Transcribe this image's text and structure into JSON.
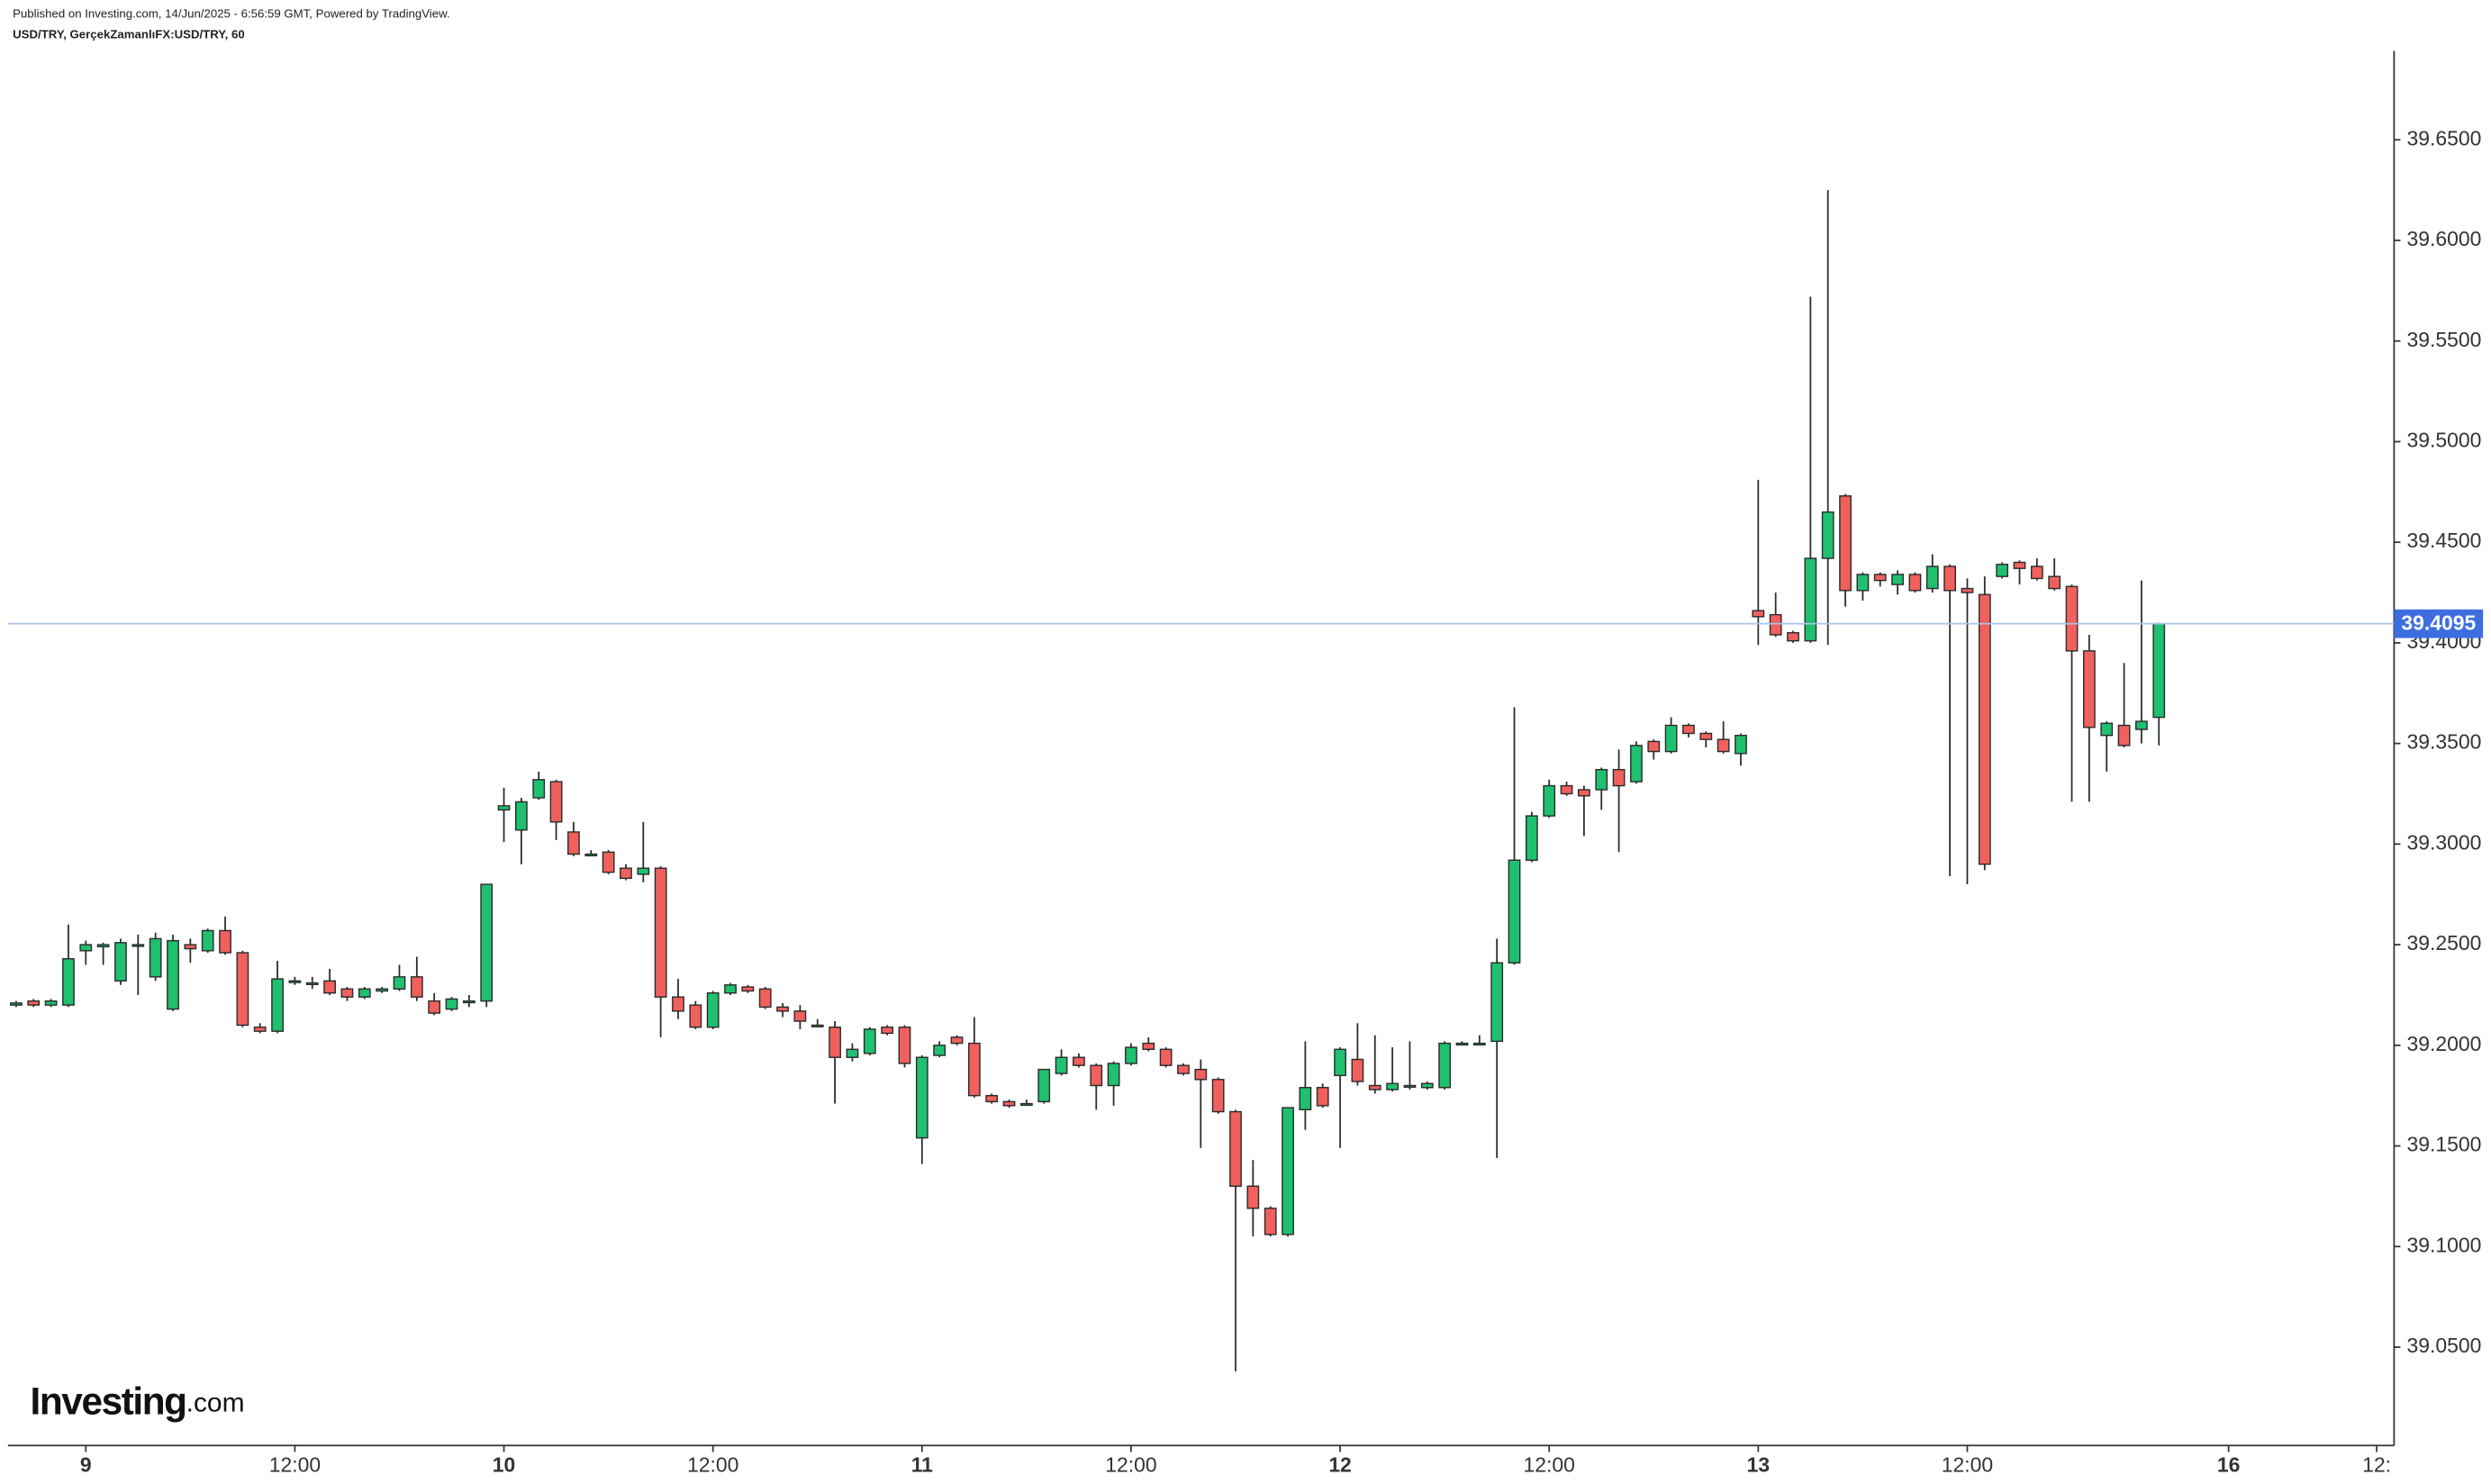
{
  "chart_data": {
    "type": "candlestick",
    "header": "Published on Investing.com, 14/Jun/2025 - 6:56:59 GMT, Powered by TradingView.",
    "title": "USD/TRY, GerçekZamanlıFX:USD/TRY, 60",
    "logo": {
      "name": "Investing",
      "suffix": ".com"
    },
    "up_color": "#1fc06f",
    "down_color": "#f0605d",
    "outline_color": "#2b2b2b",
    "price_line_color": "#a9c3e8",
    "price_label_color": "#3d6ee0",
    "last_price": 39.4095,
    "x": [
      -4,
      -3,
      -2,
      -1,
      0,
      1,
      2,
      3,
      4,
      5,
      6,
      7,
      8,
      9,
      10,
      11,
      12,
      13,
      14,
      15,
      16,
      17,
      18,
      19,
      20,
      21,
      22,
      23,
      24,
      25,
      26,
      27,
      28,
      29,
      30,
      31,
      32,
      33,
      34,
      35,
      36,
      37,
      38,
      39,
      40,
      41,
      42,
      43,
      44,
      45,
      46,
      47,
      48,
      49,
      50,
      51,
      52,
      53,
      54,
      55,
      56,
      57,
      58,
      59,
      60,
      61,
      62,
      63,
      64,
      65,
      66,
      67,
      68,
      69,
      70,
      71,
      72,
      73,
      74,
      75,
      76,
      77,
      78,
      79,
      80,
      81,
      82,
      83,
      84,
      85,
      86,
      87,
      88,
      89,
      90,
      91,
      92,
      93,
      94,
      95,
      96,
      97,
      98,
      99,
      100,
      101,
      102,
      103,
      104,
      105,
      106,
      107,
      108,
      109,
      110,
      111,
      112,
      113,
      114,
      115,
      116,
      117,
      118,
      119
    ],
    "open": [
      39.22,
      39.222,
      39.22,
      39.22,
      39.247,
      39.249,
      39.232,
      39.25,
      39.234,
      39.218,
      39.25,
      39.247,
      39.257,
      39.246,
      39.209,
      39.207,
      39.232,
      39.231,
      39.232,
      39.228,
      39.224,
      39.227,
      39.228,
      39.234,
      39.222,
      39.218,
      39.222,
      39.222,
      39.317,
      39.307,
      39.323,
      39.331,
      39.306,
      39.295,
      39.296,
      39.288,
      39.285,
      39.288,
      39.224,
      39.22,
      39.209,
      39.226,
      39.229,
      39.228,
      39.219,
      39.217,
      39.21,
      39.209,
      39.194,
      39.196,
      39.209,
      39.209,
      39.154,
      39.195,
      39.204,
      39.201,
      39.175,
      39.172,
      39.171,
      39.172,
      39.186,
      39.194,
      39.19,
      39.18,
      39.191,
      39.201,
      39.198,
      39.19,
      39.188,
      39.183,
      39.167,
      39.13,
      39.119,
      39.106,
      39.168,
      39.179,
      39.185,
      39.193,
      39.18,
      39.178,
      39.18,
      39.179,
      39.179,
      39.201,
      39.201,
      39.202,
      39.241,
      39.292,
      39.314,
      39.329,
      39.327,
      39.327,
      39.337,
      39.331,
      39.351,
      39.346,
      39.359,
      39.355,
      39.352,
      39.345,
      39.416,
      39.414,
      39.405,
      39.401,
      39.442,
      39.473,
      39.426,
      39.434,
      39.429,
      39.434,
      39.427,
      39.438,
      39.427,
      39.424,
      39.433,
      39.44,
      39.438,
      39.433,
      39.428,
      39.396,
      39.354,
      39.359,
      39.357,
      39.363
    ],
    "high": [
      39.222,
      39.223,
      39.223,
      39.26,
      39.252,
      39.251,
      39.253,
      39.255,
      39.256,
      39.255,
      39.253,
      39.258,
      39.264,
      39.247,
      39.211,
      39.242,
      39.234,
      39.234,
      39.238,
      39.229,
      39.229,
      39.229,
      39.24,
      39.244,
      39.226,
      39.224,
      39.225,
      39.28,
      39.328,
      39.323,
      39.336,
      39.332,
      39.311,
      39.297,
      39.297,
      39.29,
      39.311,
      39.289,
      39.233,
      39.222,
      39.227,
      39.231,
      39.23,
      39.229,
      39.221,
      39.22,
      39.213,
      39.212,
      39.201,
      39.209,
      39.21,
      39.21,
      39.195,
      39.202,
      39.205,
      39.214,
      39.176,
      39.173,
      39.173,
      39.188,
      39.198,
      39.196,
      39.191,
      39.192,
      39.201,
      39.204,
      39.199,
      39.191,
      39.193,
      39.184,
      39.168,
      39.143,
      39.12,
      39.169,
      39.202,
      39.181,
      39.199,
      39.211,
      39.205,
      39.199,
      39.202,
      39.182,
      39.202,
      39.202,
      39.205,
      39.253,
      39.368,
      39.316,
      39.332,
      39.331,
      39.329,
      39.338,
      39.347,
      39.351,
      39.352,
      39.363,
      39.36,
      39.356,
      39.361,
      39.355,
      39.481,
      39.425,
      39.406,
      39.572,
      39.625,
      39.474,
      39.435,
      39.435,
      39.436,
      39.435,
      39.444,
      39.439,
      39.432,
      39.433,
      39.44,
      39.441,
      39.442,
      39.442,
      39.429,
      39.404,
      39.361,
      39.39,
      39.431,
      39.41
    ],
    "low": [
      39.219,
      39.219,
      39.219,
      39.219,
      39.24,
      39.24,
      39.23,
      39.225,
      39.232,
      39.217,
      39.241,
      39.246,
      39.245,
      39.209,
      39.206,
      39.206,
      39.23,
      39.228,
      39.225,
      39.222,
      39.223,
      39.226,
      39.227,
      39.222,
      39.215,
      39.217,
      39.219,
      39.219,
      39.301,
      39.29,
      39.322,
      39.302,
      39.294,
      39.294,
      39.285,
      39.282,
      39.281,
      39.204,
      39.213,
      39.208,
      39.208,
      39.225,
      39.226,
      39.218,
      39.214,
      39.208,
      39.209,
      39.171,
      39.192,
      39.195,
      39.205,
      39.189,
      39.141,
      39.194,
      39.2,
      39.174,
      39.171,
      39.169,
      39.17,
      39.171,
      39.185,
      39.189,
      39.168,
      39.17,
      39.19,
      39.197,
      39.189,
      39.185,
      39.149,
      39.166,
      39.038,
      39.105,
      39.105,
      39.105,
      39.158,
      39.169,
      39.149,
      39.18,
      39.176,
      39.177,
      39.178,
      39.178,
      39.178,
      39.2,
      39.2,
      39.144,
      39.24,
      39.291,
      39.313,
      39.324,
      39.304,
      39.317,
      39.296,
      39.33,
      39.342,
      39.345,
      39.353,
      39.348,
      39.345,
      39.339,
      39.399,
      39.403,
      39.4,
      39.4,
      39.399,
      39.418,
      39.421,
      39.428,
      39.424,
      39.425,
      39.425,
      39.284,
      39.28,
      39.287,
      39.432,
      39.429,
      39.431,
      39.426,
      39.321,
      39.321,
      39.336,
      39.348,
      39.35,
      39.349
    ],
    "close": [
      39.221,
      39.22,
      39.222,
      39.243,
      39.25,
      39.25,
      39.251,
      39.25,
      39.253,
      39.252,
      39.248,
      39.257,
      39.246,
      39.21,
      39.207,
      39.233,
      39.232,
      39.231,
      39.226,
      39.224,
      39.228,
      39.228,
      39.234,
      39.224,
      39.216,
      39.223,
      39.222,
      39.28,
      39.319,
      39.321,
      39.332,
      39.311,
      39.295,
      39.295,
      39.286,
      39.283,
      39.288,
      39.224,
      39.217,
      39.209,
      39.226,
      39.23,
      39.227,
      39.219,
      39.217,
      39.212,
      39.21,
      39.194,
      39.198,
      39.208,
      39.206,
      39.191,
      39.194,
      39.2,
      39.201,
      39.175,
      39.172,
      39.17,
      39.171,
      39.188,
      39.194,
      39.19,
      39.18,
      39.191,
      39.199,
      39.198,
      39.19,
      39.186,
      39.183,
      39.167,
      39.13,
      39.119,
      39.106,
      39.169,
      39.179,
      39.17,
      39.198,
      39.182,
      39.178,
      39.181,
      39.18,
      39.181,
      39.201,
      39.201,
      39.201,
      39.241,
      39.292,
      39.314,
      39.329,
      39.325,
      39.324,
      39.337,
      39.329,
      39.349,
      39.346,
      39.359,
      39.355,
      39.352,
      39.346,
      39.354,
      39.413,
      39.404,
      39.401,
      39.442,
      39.465,
      39.426,
      39.434,
      39.431,
      39.434,
      39.426,
      39.438,
      39.426,
      39.425,
      39.29,
      39.439,
      39.437,
      39.432,
      39.427,
      39.396,
      39.358,
      39.36,
      39.349,
      39.361,
      39.4095
    ],
    "xlim": [
      -4.47,
      132.5
    ],
    "xticks": [
      {
        "value": 0,
        "label": "9"
      },
      {
        "value": 12,
        "label": "12:00"
      },
      {
        "value": 24,
        "label": "10"
      },
      {
        "value": 36,
        "label": "12:00"
      },
      {
        "value": 48,
        "label": "11"
      },
      {
        "value": 60,
        "label": "12:00"
      },
      {
        "value": 72,
        "label": "12"
      },
      {
        "value": 84,
        "label": "12:00"
      },
      {
        "value": 96,
        "label": "13"
      },
      {
        "value": 108,
        "label": "12:00"
      },
      {
        "value": 123,
        "label": "16"
      },
      {
        "value": 131.5,
        "label": "12:"
      }
    ],
    "ylim": [
      39.0011,
      39.6942
    ],
    "yticks": [
      {
        "value": 39.05,
        "label": "39.0500"
      },
      {
        "value": 39.1,
        "label": "39.1000"
      },
      {
        "value": 39.15,
        "label": "39.1500"
      },
      {
        "value": 39.2,
        "label": "39.2000"
      },
      {
        "value": 39.25,
        "label": "39.2500"
      },
      {
        "value": 39.3,
        "label": "39.3000"
      },
      {
        "value": 39.35,
        "label": "39.3500"
      },
      {
        "value": 39.4,
        "label": "39.4000"
      },
      {
        "value": 39.45,
        "label": "39.4500"
      },
      {
        "value": 39.5,
        "label": "39.5000"
      },
      {
        "value": 39.55,
        "label": "39.5500"
      },
      {
        "value": 39.6,
        "label": "39.6000"
      },
      {
        "value": 39.65,
        "label": "39.6500"
      }
    ],
    "grid": false
  }
}
